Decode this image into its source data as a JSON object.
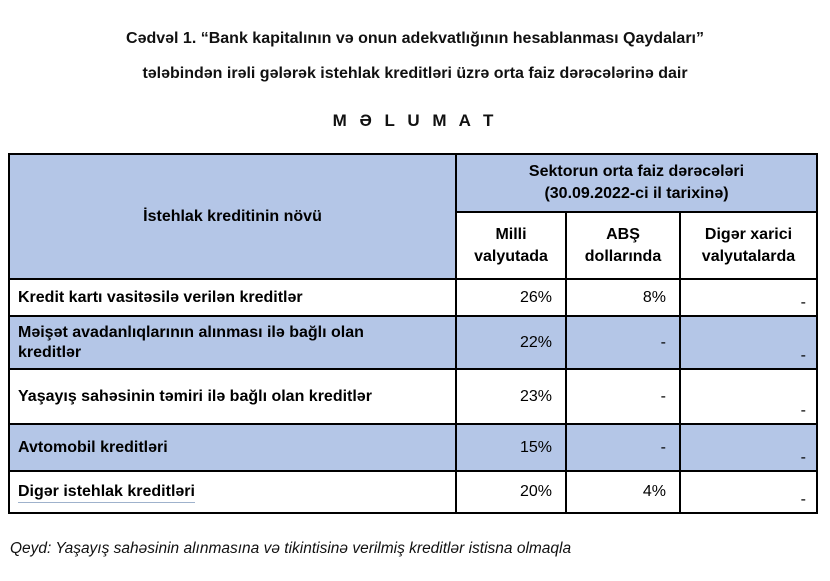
{
  "title": {
    "line1": "Cədvəl 1. “Bank kapitalının və onun adekvatlığının hesablanması Qaydaları”",
    "line2": "tələbindən irəli gələrək istehlak kreditləri üzrə orta faiz dərəcələrinə dair",
    "heading": "M Ə L U M A T"
  },
  "table": {
    "left_header": "İstehlak kreditinin növü",
    "group_header": "Sektorun orta faiz dərəcələri\n(30.09.2022-ci il tarixinə)",
    "sub_headers": [
      "Milli valyutada",
      "ABŞ dollarında",
      "Digər xarici valyutalarda"
    ],
    "rows": [
      {
        "label": "Kredit kartı vasitəsilə verilən kreditlər",
        "milli": "26%",
        "usd": "8%",
        "other": "-"
      },
      {
        "label": "Məişət avadanlıqlarının alınması ilə bağlı olan kreditlər",
        "milli": "22%",
        "usd": "-",
        "other": "-"
      },
      {
        "label": "Yaşayış sahəsinin təmiri ilə bağlı olan kreditlər",
        "milli": "23%",
        "usd": "-",
        "other": "-"
      },
      {
        "label": "Avtomobil kreditləri",
        "milli": "15%",
        "usd": "-",
        "other": "-"
      },
      {
        "label": "Digər istehlak kreditləri",
        "milli": "20%",
        "usd": "4%",
        "other": "-"
      }
    ]
  },
  "note": "Qeyd: Yaşayış sahəsinin alınmasına və tikintisinə verilmiş kreditlər istisna olmaqla",
  "colors": {
    "header_fill": "#B4C6E7",
    "alt_row_fill": "#B4C6E7",
    "border": "#000000",
    "underline": "#9FB2CC"
  }
}
